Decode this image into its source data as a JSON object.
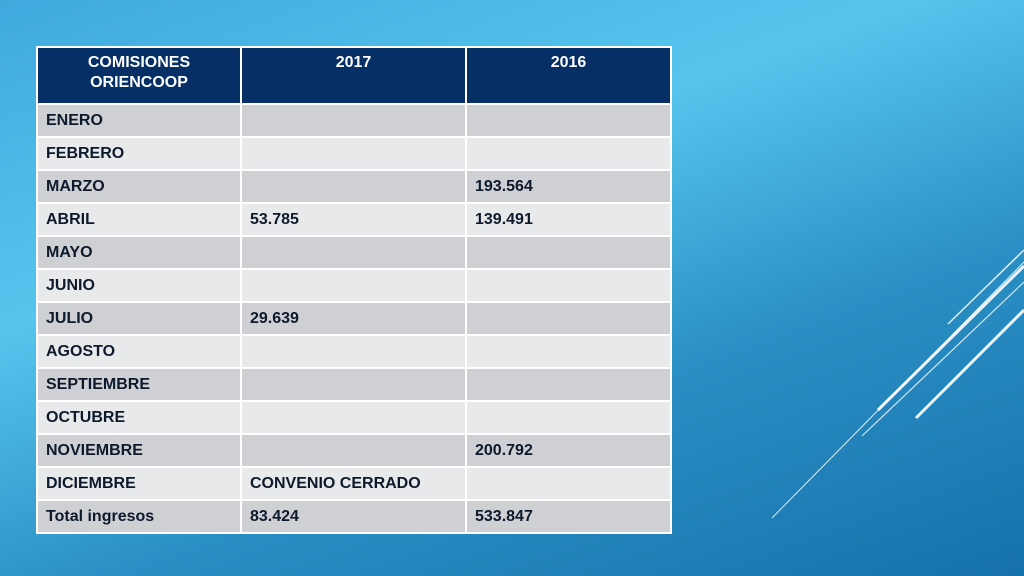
{
  "table": {
    "headers": [
      "COMISIONES ORIENCOOP",
      "2017",
      "2016"
    ],
    "rows": [
      [
        "ENERO",
        "",
        ""
      ],
      [
        "FEBRERO",
        "",
        ""
      ],
      [
        "MARZO",
        "",
        "193.564"
      ],
      [
        "ABRIL",
        " 53.785",
        "139.491"
      ],
      [
        "MAYO",
        "",
        ""
      ],
      [
        "JUNIO",
        "",
        ""
      ],
      [
        "JULIO",
        " 29.639",
        ""
      ],
      [
        "AGOSTO",
        "",
        ""
      ],
      [
        "SEPTIEMBRE",
        "",
        ""
      ],
      [
        "OCTUBRE",
        "",
        ""
      ],
      [
        "NOVIEMBRE",
        "",
        " 200.792"
      ],
      [
        "DICIEMBRE",
        "CONVENIO CERRADO",
        ""
      ]
    ],
    "total": [
      "Total ingresos",
      "83.424",
      "533.847"
    ]
  },
  "colors": {
    "header_bg": "#062f66",
    "row_dark": "#cfd0d4",
    "row_light": "#e8e9eb",
    "background_top": "#56c6ee",
    "background_bottom": "#1671aa"
  }
}
